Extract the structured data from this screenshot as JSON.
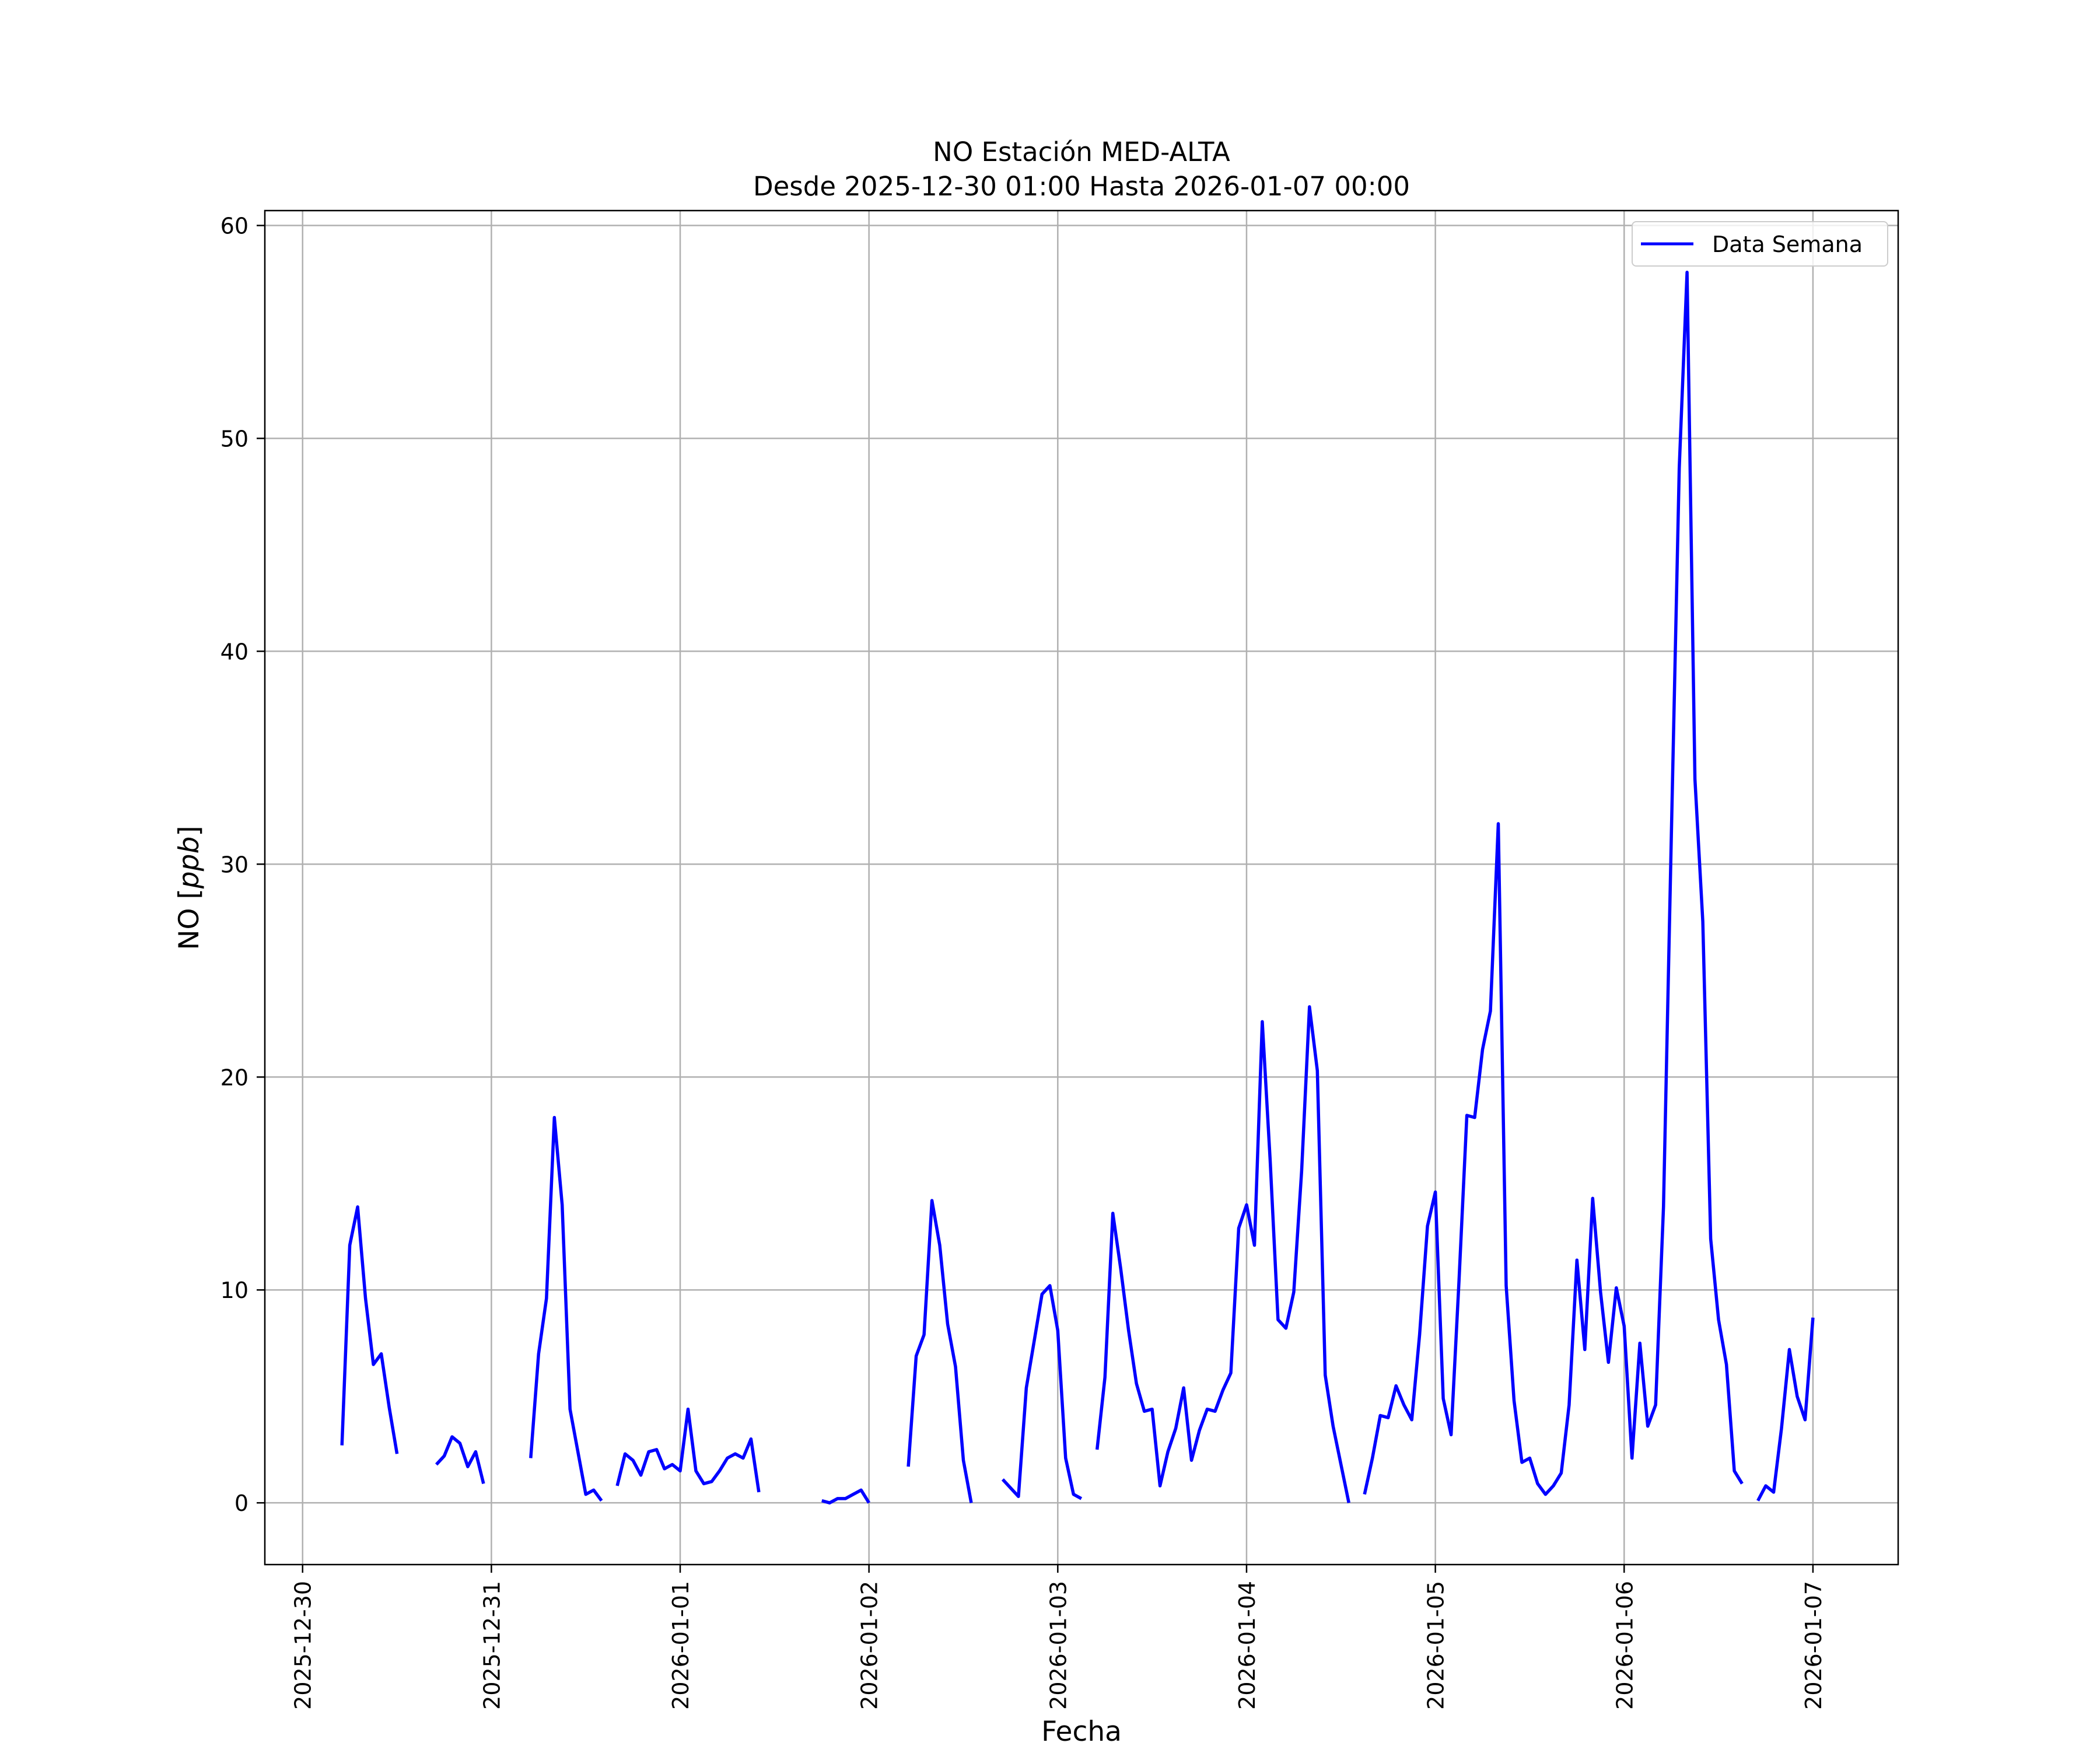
{
  "chart_data": {
    "type": "line",
    "title_line1": "NO Estación MED-ALTA",
    "title_line2": "Desde 2025-12-30 01:00 Hasta 2026-01-07 00:00",
    "xlabel": "Fecha",
    "ylabel": "NO [ppb]",
    "ylabel_prefix": "NO [",
    "ylabel_unit": "ppb",
    "ylabel_suffix": "]",
    "x_tick_labels": [
      "2025-12-30",
      "2025-12-31",
      "2026-01-01",
      "2026-01-02",
      "2026-01-03",
      "2026-01-04",
      "2026-01-05",
      "2026-01-06",
      "2026-01-07"
    ],
    "y_tick_labels": [
      "0",
      "10",
      "20",
      "30",
      "40",
      "50",
      "60"
    ],
    "y_ticks": [
      0,
      10,
      20,
      30,
      40,
      50,
      60
    ],
    "xlim": [
      "2025-12-29 19:12",
      "2026-01-07 10:50"
    ],
    "ylim": [
      -2.9,
      60.7
    ],
    "grid": true,
    "legend": {
      "entry": "Data Semana",
      "position": "upper right"
    },
    "colors": {
      "line": "#0000ff",
      "grid": "#b0b0b0",
      "axes": "#000000"
    },
    "series": [
      {
        "name": "Data Semana",
        "points": [
          [
            "2025-12-30 05:00",
            2.7
          ],
          [
            "2025-12-30 06:00",
            12.1
          ],
          [
            "2025-12-30 07:00",
            13.9
          ],
          [
            "2025-12-30 08:00",
            9.6
          ],
          [
            "2025-12-30 09:00",
            6.5
          ],
          [
            "2025-12-30 10:00",
            7.0
          ],
          [
            "2025-12-30 11:00",
            4.5
          ],
          [
            "2025-12-30 12:00",
            2.3
          ],
          null,
          [
            "2025-12-30 17:00",
            1.8
          ],
          [
            "2025-12-30 18:00",
            2.2
          ],
          [
            "2025-12-30 19:00",
            3.1
          ],
          [
            "2025-12-30 20:00",
            2.8
          ],
          [
            "2025-12-30 21:00",
            1.7
          ],
          [
            "2025-12-30 22:00",
            2.4
          ],
          [
            "2025-12-30 23:00",
            0.9
          ],
          null,
          [
            "2025-12-31 05:00",
            2.1
          ],
          [
            "2025-12-31 06:00",
            7.0
          ],
          [
            "2025-12-31 07:00",
            9.6
          ],
          [
            "2025-12-31 08:00",
            18.1
          ],
          [
            "2025-12-31 09:00",
            14.0
          ],
          [
            "2025-12-31 10:00",
            4.4
          ],
          [
            "2025-12-31 11:00",
            2.4
          ],
          [
            "2025-12-31 12:00",
            0.4
          ],
          [
            "2025-12-31 13:00",
            0.6
          ],
          [
            "2025-12-31 14:00",
            0.1
          ],
          null,
          [
            "2025-12-31 16:00",
            0.8
          ],
          [
            "2025-12-31 17:00",
            2.3
          ],
          [
            "2025-12-31 18:00",
            2.0
          ],
          [
            "2025-12-31 19:00",
            1.3
          ],
          [
            "2025-12-31 20:00",
            2.4
          ],
          [
            "2025-12-31 21:00",
            2.5
          ],
          [
            "2025-12-31 22:00",
            1.6
          ],
          [
            "2025-12-31 23:00",
            1.8
          ],
          [
            "2026-01-01 00:00",
            1.5
          ],
          [
            "2026-01-01 01:00",
            4.4
          ],
          [
            "2026-01-01 02:00",
            1.5
          ],
          [
            "2026-01-01 03:00",
            0.9
          ],
          [
            "2026-01-01 04:00",
            1.0
          ],
          [
            "2026-01-01 05:00",
            1.5
          ],
          [
            "2026-01-01 06:00",
            2.1
          ],
          [
            "2026-01-01 07:00",
            2.3
          ],
          [
            "2026-01-01 08:00",
            2.1
          ],
          [
            "2026-01-01 09:00",
            3.0
          ],
          [
            "2026-01-01 10:00",
            0.5
          ],
          null,
          [
            "2026-01-01 18:00",
            0.1
          ],
          [
            "2026-01-01 19:00",
            0.0
          ],
          [
            "2026-01-01 20:00",
            0.2
          ],
          [
            "2026-01-01 21:00",
            0.2
          ],
          [
            "2026-01-01 22:00",
            0.4
          ],
          [
            "2026-01-01 23:00",
            0.6
          ],
          [
            "2026-01-02 00:00",
            0.0
          ],
          null,
          [
            "2026-01-02 05:00",
            1.7
          ],
          [
            "2026-01-02 06:00",
            6.9
          ],
          [
            "2026-01-02 07:00",
            7.9
          ],
          [
            "2026-01-02 08:00",
            14.2
          ],
          [
            "2026-01-02 09:00",
            12.1
          ],
          [
            "2026-01-02 10:00",
            8.4
          ],
          [
            "2026-01-02 11:00",
            6.4
          ],
          [
            "2026-01-02 12:00",
            2.0
          ],
          [
            "2026-01-02 13:00",
            0.0
          ],
          null,
          [
            "2026-01-02 17:00",
            1.1
          ],
          [
            "2026-01-02 18:00",
            0.7
          ],
          [
            "2026-01-02 19:00",
            0.3
          ],
          [
            "2026-01-02 20:00",
            5.4
          ],
          [
            "2026-01-02 21:00",
            7.6
          ],
          [
            "2026-01-02 22:00",
            9.8
          ],
          [
            "2026-01-02 23:00",
            10.2
          ],
          [
            "2026-01-03 00:00",
            8.1
          ],
          [
            "2026-01-03 01:00",
            2.1
          ],
          [
            "2026-01-03 02:00",
            0.4
          ],
          [
            "2026-01-03 03:00",
            0.2
          ],
          null,
          [
            "2026-01-03 05:00",
            2.5
          ],
          [
            "2026-01-03 06:00",
            5.9
          ],
          [
            "2026-01-03 07:00",
            13.6
          ],
          [
            "2026-01-03 08:00",
            11.0
          ],
          [
            "2026-01-03 09:00",
            8.1
          ],
          [
            "2026-01-03 10:00",
            5.6
          ],
          [
            "2026-01-03 11:00",
            4.3
          ],
          [
            "2026-01-03 12:00",
            4.4
          ],
          [
            "2026-01-03 13:00",
            0.8
          ],
          [
            "2026-01-03 14:00",
            2.4
          ],
          [
            "2026-01-03 15:00",
            3.5
          ],
          [
            "2026-01-03 16:00",
            5.4
          ],
          [
            "2026-01-03 17:00",
            2.0
          ],
          [
            "2026-01-03 18:00",
            3.4
          ],
          [
            "2026-01-03 19:00",
            4.4
          ],
          [
            "2026-01-03 20:00",
            4.3
          ],
          [
            "2026-01-03 21:00",
            5.3
          ],
          [
            "2026-01-03 22:00",
            6.1
          ],
          [
            "2026-01-03 23:00",
            12.9
          ],
          [
            "2026-01-04 00:00",
            14.0
          ],
          [
            "2026-01-04 01:00",
            12.1
          ],
          [
            "2026-01-04 02:00",
            22.6
          ],
          [
            "2026-01-04 03:00",
            16.1
          ],
          [
            "2026-01-04 04:00",
            8.6
          ],
          [
            "2026-01-04 05:00",
            8.2
          ],
          [
            "2026-01-04 06:00",
            9.9
          ],
          [
            "2026-01-04 07:00",
            15.6
          ],
          [
            "2026-01-04 08:00",
            23.3
          ],
          [
            "2026-01-04 09:00",
            20.3
          ],
          [
            "2026-01-04 10:00",
            6.0
          ],
          [
            "2026-01-04 11:00",
            3.6
          ],
          [
            "2026-01-04 12:00",
            1.8
          ],
          [
            "2026-01-04 13:00",
            0.0
          ],
          null,
          [
            "2026-01-04 15:00",
            0.4
          ],
          [
            "2026-01-04 16:00",
            2.1
          ],
          [
            "2026-01-04 17:00",
            4.1
          ],
          [
            "2026-01-04 18:00",
            4.0
          ],
          [
            "2026-01-04 19:00",
            5.5
          ],
          [
            "2026-01-04 20:00",
            4.6
          ],
          [
            "2026-01-04 21:00",
            3.9
          ],
          [
            "2026-01-04 22:00",
            7.9
          ],
          [
            "2026-01-04 23:00",
            13.0
          ],
          [
            "2026-01-05 00:00",
            14.6
          ],
          [
            "2026-01-05 01:00",
            4.9
          ],
          [
            "2026-01-05 02:00",
            3.2
          ],
          [
            "2026-01-05 03:00",
            10.4
          ],
          [
            "2026-01-05 04:00",
            18.2
          ],
          [
            "2026-01-05 05:00",
            18.1
          ],
          [
            "2026-01-05 06:00",
            21.3
          ],
          [
            "2026-01-05 07:00",
            23.1
          ],
          [
            "2026-01-05 08:00",
            31.9
          ],
          [
            "2026-01-05 09:00",
            10.2
          ],
          [
            "2026-01-05 10:00",
            4.8
          ],
          [
            "2026-01-05 11:00",
            1.9
          ],
          [
            "2026-01-05 12:00",
            2.1
          ],
          [
            "2026-01-05 13:00",
            0.9
          ],
          [
            "2026-01-05 14:00",
            0.4
          ],
          [
            "2026-01-05 15:00",
            0.8
          ],
          [
            "2026-01-05 16:00",
            1.4
          ],
          [
            "2026-01-05 17:00",
            4.6
          ],
          [
            "2026-01-05 18:00",
            11.4
          ],
          [
            "2026-01-05 19:00",
            7.2
          ],
          [
            "2026-01-05 20:00",
            14.3
          ],
          [
            "2026-01-05 21:00",
            9.9
          ],
          [
            "2026-01-05 22:00",
            6.6
          ],
          [
            "2026-01-05 23:00",
            10.1
          ],
          [
            "2026-01-06 00:00",
            8.3
          ],
          [
            "2026-01-06 01:00",
            2.1
          ],
          [
            "2026-01-06 02:00",
            7.5
          ],
          [
            "2026-01-06 03:00",
            3.6
          ],
          [
            "2026-01-06 04:00",
            4.6
          ],
          [
            "2026-01-06 05:00",
            13.9
          ],
          [
            "2026-01-06 06:00",
            31.4
          ],
          [
            "2026-01-06 07:00",
            48.6
          ],
          [
            "2026-01-06 08:00",
            57.8
          ],
          [
            "2026-01-06 09:00",
            34.0
          ],
          [
            "2026-01-06 10:00",
            27.3
          ],
          [
            "2026-01-06 11:00",
            12.4
          ],
          [
            "2026-01-06 12:00",
            8.6
          ],
          [
            "2026-01-06 13:00",
            6.5
          ],
          [
            "2026-01-06 14:00",
            1.5
          ],
          [
            "2026-01-06 15:00",
            0.9
          ],
          null,
          [
            "2026-01-06 17:00",
            0.1
          ],
          [
            "2026-01-06 18:00",
            0.8
          ],
          [
            "2026-01-06 19:00",
            0.5
          ],
          [
            "2026-01-06 20:00",
            3.5
          ],
          [
            "2026-01-06 21:00",
            7.2
          ],
          [
            "2026-01-06 22:00",
            5.0
          ],
          [
            "2026-01-06 23:00",
            3.9
          ],
          [
            "2026-01-07 00:00",
            8.7
          ]
        ]
      }
    ]
  }
}
